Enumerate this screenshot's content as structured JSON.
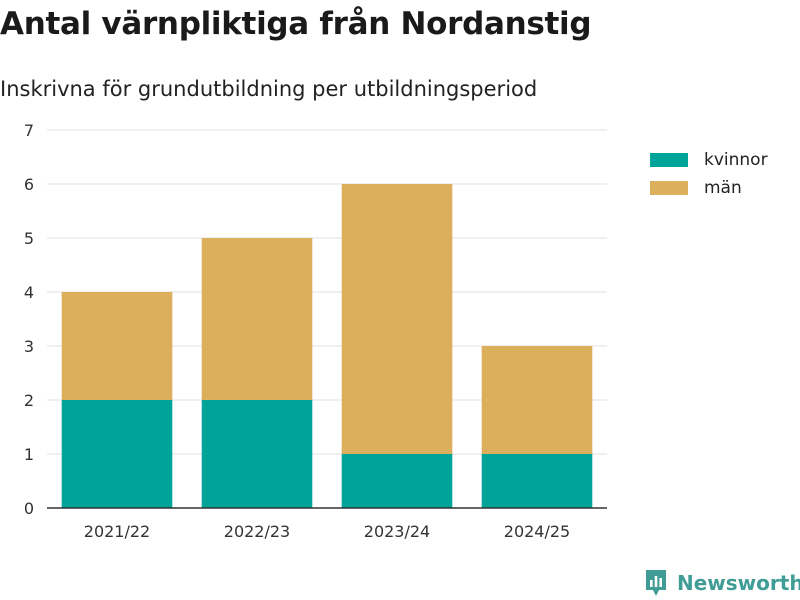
{
  "header": {
    "title": "Antal värnpliktiga från Nordanstig",
    "subtitle": "Inskrivna för grundutbildning per utbildningsperiod"
  },
  "branding": {
    "name": "Newsworthy"
  },
  "colors": {
    "kvinnor": "#00a398",
    "man": "#dbaf5c",
    "gridline": "#e0e0e0",
    "axis": "#333333",
    "brand": "#3f9d95"
  },
  "chart_data": {
    "type": "bar",
    "stacked": true,
    "title": "Antal värnpliktiga från Nordanstig",
    "subtitle": "Inskrivna för grundutbildning per utbildningsperiod",
    "xlabel": "",
    "ylabel": "",
    "categories": [
      "2021/22",
      "2022/23",
      "2023/24",
      "2024/25"
    ],
    "series": [
      {
        "name": "kvinnor",
        "values": [
          2,
          2,
          1,
          1
        ]
      },
      {
        "name": "män",
        "values": [
          2,
          3,
          5,
          2
        ]
      }
    ],
    "ylim": [
      0,
      7
    ],
    "yticks": [
      "0",
      "1",
      "2",
      "3",
      "4",
      "5",
      "6",
      "7"
    ],
    "grid": true,
    "legend_position": "top-right"
  }
}
